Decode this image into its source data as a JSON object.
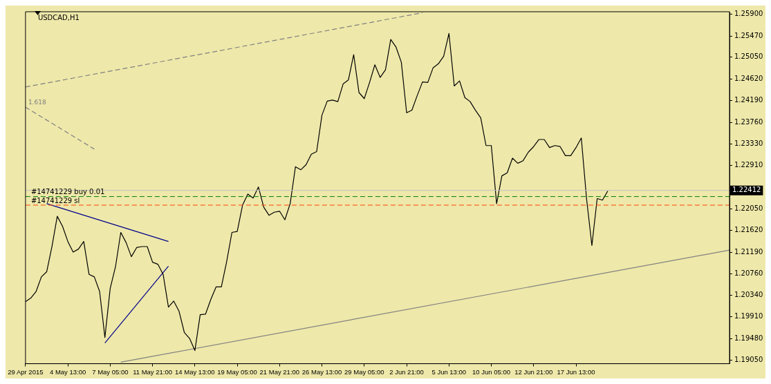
{
  "chart_data": {
    "type": "line",
    "title": "USDCAD,H1",
    "categories": [
      "29 Apr 2015",
      null,
      null,
      null,
      null,
      null,
      null,
      null,
      "4 May 13:00",
      null,
      null,
      null,
      null,
      null,
      null,
      null,
      "7 May 05:00",
      null,
      null,
      null,
      null,
      null,
      null,
      null,
      "11 May 21:00",
      null,
      null,
      null,
      null,
      null,
      null,
      null,
      "14 May 13:00",
      null,
      null,
      null,
      null,
      null,
      null,
      null,
      "19 May 05:00",
      null,
      null,
      null,
      null,
      null,
      null,
      null,
      "21 May 21:00",
      null,
      null,
      null,
      null,
      null,
      null,
      null,
      "26 May 13:00",
      null,
      null,
      null,
      null,
      null,
      null,
      null,
      "29 May 05:00",
      null,
      null,
      null,
      null,
      null,
      null,
      null,
      "2 Jun 21:00",
      null,
      null,
      null,
      null,
      null,
      null,
      null,
      "5 Jun 13:00",
      null,
      null,
      null,
      null,
      null,
      null,
      null,
      "10 Jun 05:00",
      null,
      null,
      null,
      null,
      null,
      null,
      null,
      "12 Jun 21:00",
      null,
      null,
      null,
      null,
      null,
      null,
      null,
      "17 Jun 13:00",
      null,
      null,
      null,
      null,
      null,
      null,
      null,
      null,
      null,
      null,
      null,
      null,
      null,
      null,
      null,
      null,
      null,
      null,
      null,
      null,
      null,
      null,
      null,
      null,
      null,
      null,
      null,
      null,
      null
    ],
    "ylim": [
      1.1898,
      1.2595
    ],
    "yticks": [
      {
        "value": 1.259,
        "label": "1.25900"
      },
      {
        "value": 1.2547,
        "label": "1.25470"
      },
      {
        "value": 1.2505,
        "label": "1.25050"
      },
      {
        "value": 1.2462,
        "label": "1.24620"
      },
      {
        "value": 1.2419,
        "label": "1.24190"
      },
      {
        "value": 1.2376,
        "label": "1.23760"
      },
      {
        "value": 1.2333,
        "label": "1.23330"
      },
      {
        "value": 1.2291,
        "label": "1.22910"
      },
      {
        "value": 1.2205,
        "label": "1.22050"
      },
      {
        "value": 1.2162,
        "label": "1.21620"
      },
      {
        "value": 1.2119,
        "label": "1.21190"
      },
      {
        "value": 1.2076,
        "label": "1.20760"
      },
      {
        "value": 1.2034,
        "label": "1.20340"
      },
      {
        "value": 1.1991,
        "label": "1.19910"
      },
      {
        "value": 1.1948,
        "label": "1.19480"
      },
      {
        "value": 1.1905,
        "label": "1.19050"
      }
    ],
    "series": [
      {
        "color": "#000000",
        "line_style": "solid",
        "values": [
          1.2021,
          1.2028,
          1.2041,
          1.207,
          1.208,
          1.213,
          1.219,
          1.217,
          1.214,
          1.2119,
          1.2125,
          1.214,
          1.2075,
          1.207,
          1.2041,
          1.195,
          1.2047,
          1.209,
          1.2158,
          1.2138,
          1.211,
          1.2128,
          1.213,
          1.213,
          1.2099,
          1.2095,
          1.2075,
          1.201,
          1.2022,
          1.2002,
          1.196,
          1.1948,
          1.1924,
          1.1995,
          1.1996,
          1.2025,
          1.205,
          1.205,
          1.21,
          1.2158,
          1.216,
          1.2212,
          1.2234,
          1.2226,
          1.2248,
          1.2208,
          1.2192,
          1.2198,
          1.22,
          1.2183,
          1.2215,
          1.2288,
          1.2282,
          1.2292,
          1.2313,
          1.2318,
          1.239,
          1.2418,
          1.242,
          1.2417,
          1.2452,
          1.246,
          1.251,
          1.2435,
          1.2423,
          1.2455,
          1.249,
          1.2465,
          1.248,
          1.254,
          1.2525,
          1.2495,
          1.2395,
          1.24,
          1.2429,
          1.2456,
          1.2455,
          1.2484,
          1.2492,
          1.2507,
          1.2552,
          1.2448,
          1.2458,
          1.2425,
          1.2417,
          1.24,
          1.2385,
          1.233,
          1.233,
          1.2215,
          1.227,
          1.2276,
          1.2305,
          1.2295,
          1.23,
          1.2317,
          1.2328,
          1.2342,
          1.2342,
          1.2326,
          1.233,
          1.2328,
          1.231,
          1.231,
          1.2326,
          1.2345,
          1.2224,
          1.2132,
          1.2225,
          1.2222,
          1.224,
          null,
          null,
          null,
          null,
          null,
          null,
          null,
          null,
          null,
          null,
          null,
          null,
          null,
          null,
          null,
          null,
          null,
          null,
          null,
          null,
          null,
          null,
          null
        ]
      },
      {
        "color": "#808080",
        "line_style": "dashed",
        "values": [
          1.2446,
          null,
          null,
          null,
          null,
          null,
          null,
          null,
          null,
          null,
          null,
          null,
          null,
          null,
          null,
          null,
          null,
          null,
          null,
          null,
          null,
          null,
          null,
          null,
          null,
          null,
          null,
          null,
          null,
          null,
          null,
          null,
          null,
          null,
          null,
          null,
          null,
          null,
          null,
          null,
          null,
          null,
          null,
          null,
          null,
          null,
          null,
          null,
          null,
          null,
          null,
          null,
          null,
          null,
          null,
          null,
          null,
          null,
          null,
          null,
          null,
          null,
          null,
          null,
          null,
          null,
          null,
          null,
          null,
          null,
          null,
          null,
          null,
          null,
          null,
          1.2593,
          null,
          null,
          null,
          null,
          null,
          null,
          null,
          null,
          null,
          null,
          null,
          null,
          null,
          null,
          null,
          null,
          null,
          null,
          null,
          null,
          null,
          null,
          null,
          null,
          null,
          null,
          null,
          null,
          null,
          null,
          null,
          null,
          null,
          null,
          null,
          null,
          null,
          null,
          null,
          null,
          null,
          null,
          null,
          null,
          null,
          null,
          null,
          null,
          null,
          null,
          null,
          null,
          null,
          null,
          null,
          null,
          null,
          null
        ]
      },
      {
        "color": "#808080",
        "line_style": "solid",
        "values": [
          null,
          null,
          null,
          null,
          null,
          null,
          null,
          null,
          null,
          null,
          null,
          null,
          null,
          null,
          null,
          null,
          null,
          null,
          1.1901,
          null,
          null,
          null,
          null,
          null,
          null,
          null,
          null,
          null,
          null,
          null,
          null,
          null,
          null,
          null,
          null,
          null,
          null,
          null,
          null,
          null,
          null,
          null,
          null,
          null,
          null,
          null,
          null,
          null,
          null,
          null,
          null,
          null,
          null,
          null,
          null,
          null,
          null,
          null,
          null,
          null,
          null,
          null,
          null,
          null,
          null,
          null,
          null,
          null,
          null,
          null,
          null,
          null,
          null,
          null,
          null,
          null,
          null,
          null,
          null,
          null,
          null,
          null,
          null,
          null,
          null,
          null,
          null,
          null,
          null,
          null,
          null,
          null,
          null,
          null,
          null,
          null,
          null,
          null,
          null,
          null,
          null,
          null,
          null,
          null,
          null,
          null,
          null,
          null,
          null,
          null,
          null,
          null,
          null,
          null,
          null,
          null,
          null,
          null,
          null,
          null,
          null,
          null,
          null,
          null,
          null,
          null,
          null,
          null,
          null,
          null,
          null,
          null,
          null,
          1.2123
        ]
      },
      {
        "color": "#00008b",
        "line_style": "solid",
        "values": [
          null,
          null,
          null,
          null,
          1.2215,
          null,
          null,
          null,
          null,
          null,
          null,
          null,
          null,
          null,
          null,
          null,
          null,
          null,
          null,
          null,
          null,
          null,
          null,
          null,
          null,
          null,
          null,
          1.214,
          null,
          null,
          null,
          null,
          null,
          null,
          null,
          null,
          null,
          null,
          null,
          null,
          null,
          null,
          null,
          null,
          null,
          null,
          null,
          null,
          null,
          null,
          null,
          null,
          null,
          null,
          null,
          null,
          null,
          null,
          null,
          null,
          null,
          null,
          null,
          null,
          null,
          null,
          null,
          null,
          null,
          null,
          null,
          null,
          null,
          null,
          null,
          null,
          null,
          null,
          null,
          null,
          null,
          null,
          null,
          null,
          null,
          null,
          null,
          null,
          null,
          null,
          null,
          null,
          null,
          null,
          null,
          null,
          null,
          null,
          null,
          null,
          null,
          null,
          null,
          null,
          null,
          null,
          null,
          null,
          null,
          null,
          null,
          null,
          null,
          null,
          null,
          null,
          null,
          null,
          null,
          null,
          null,
          null,
          null,
          null,
          null,
          null,
          null,
          null,
          null,
          null,
          null,
          null,
          null,
          null
        ]
      },
      {
        "color": "#00008b",
        "line_style": "solid",
        "values": [
          null,
          null,
          null,
          null,
          null,
          null,
          null,
          null,
          null,
          null,
          null,
          null,
          null,
          null,
          null,
          1.1939,
          null,
          null,
          null,
          null,
          null,
          null,
          null,
          null,
          null,
          null,
          null,
          1.2091,
          null,
          null,
          null,
          null,
          null,
          null,
          null,
          null,
          null,
          null,
          null,
          null,
          null,
          null,
          null,
          null,
          null,
          null,
          null,
          null,
          null,
          null,
          null,
          null,
          null,
          null,
          null,
          null,
          null,
          null,
          null,
          null,
          null,
          null,
          null,
          null,
          null,
          null,
          null,
          null,
          null,
          null,
          null,
          null,
          null,
          null,
          null,
          null,
          null,
          null,
          null,
          null,
          null,
          null,
          null,
          null,
          null,
          null,
          null,
          null,
          null,
          null,
          null,
          null,
          null,
          null,
          null,
          null,
          null,
          null,
          null,
          null,
          null,
          null,
          null,
          null,
          null,
          null,
          null,
          null,
          null,
          null,
          null,
          null,
          null,
          null,
          null,
          null,
          null,
          null,
          null,
          null,
          null,
          null,
          null,
          null,
          null,
          null,
          null,
          null,
          null,
          null,
          null,
          null,
          null,
          null
        ]
      },
      {
        "color": "#808080",
        "line_style": "dashed",
        "values": [
          1.2406,
          null,
          null,
          null,
          null,
          null,
          null,
          null,
          null,
          null,
          null,
          null,
          null,
          1.2323,
          null,
          null,
          null,
          null,
          null,
          null,
          null,
          null,
          null,
          null,
          null,
          null,
          null,
          null,
          null,
          null,
          null,
          null,
          null,
          null,
          null,
          null,
          null,
          null,
          null,
          null,
          null,
          null,
          null,
          null,
          null,
          null,
          null,
          null,
          null,
          null,
          null,
          null,
          null,
          null,
          null,
          null,
          null,
          null,
          null,
          null,
          null,
          null,
          null,
          null,
          null,
          null,
          null,
          null,
          null,
          null,
          null,
          null,
          null,
          null,
          null,
          null,
          null,
          null,
          null,
          null,
          null,
          null,
          null,
          null,
          null,
          null,
          null,
          null,
          null,
          null,
          null,
          null,
          null,
          null,
          null,
          null,
          null,
          null,
          null,
          null,
          null,
          null,
          null,
          null,
          null,
          null,
          null,
          null,
          null,
          null,
          null,
          null,
          null,
          null,
          null,
          null,
          null,
          null,
          null,
          null,
          null,
          null,
          null,
          null,
          null,
          null,
          null,
          null,
          null,
          null,
          null,
          null,
          null,
          null
        ]
      }
    ],
    "ref_lines": [
      {
        "axis": "y",
        "value": 1.22412,
        "label": "1.22412",
        "color": "#c0c0c0",
        "line_style": "solid"
      },
      {
        "axis": "y",
        "value": 1.2229,
        "label": "#14741229 buy 0.01",
        "color": "#008000",
        "line_style": "dashed"
      },
      {
        "axis": "y",
        "value": 1.2212,
        "label": "#14741229 sl",
        "color": "#ff4500",
        "line_style": "dashed"
      }
    ],
    "annotations": [
      "1.618"
    ],
    "grid": false
  }
}
